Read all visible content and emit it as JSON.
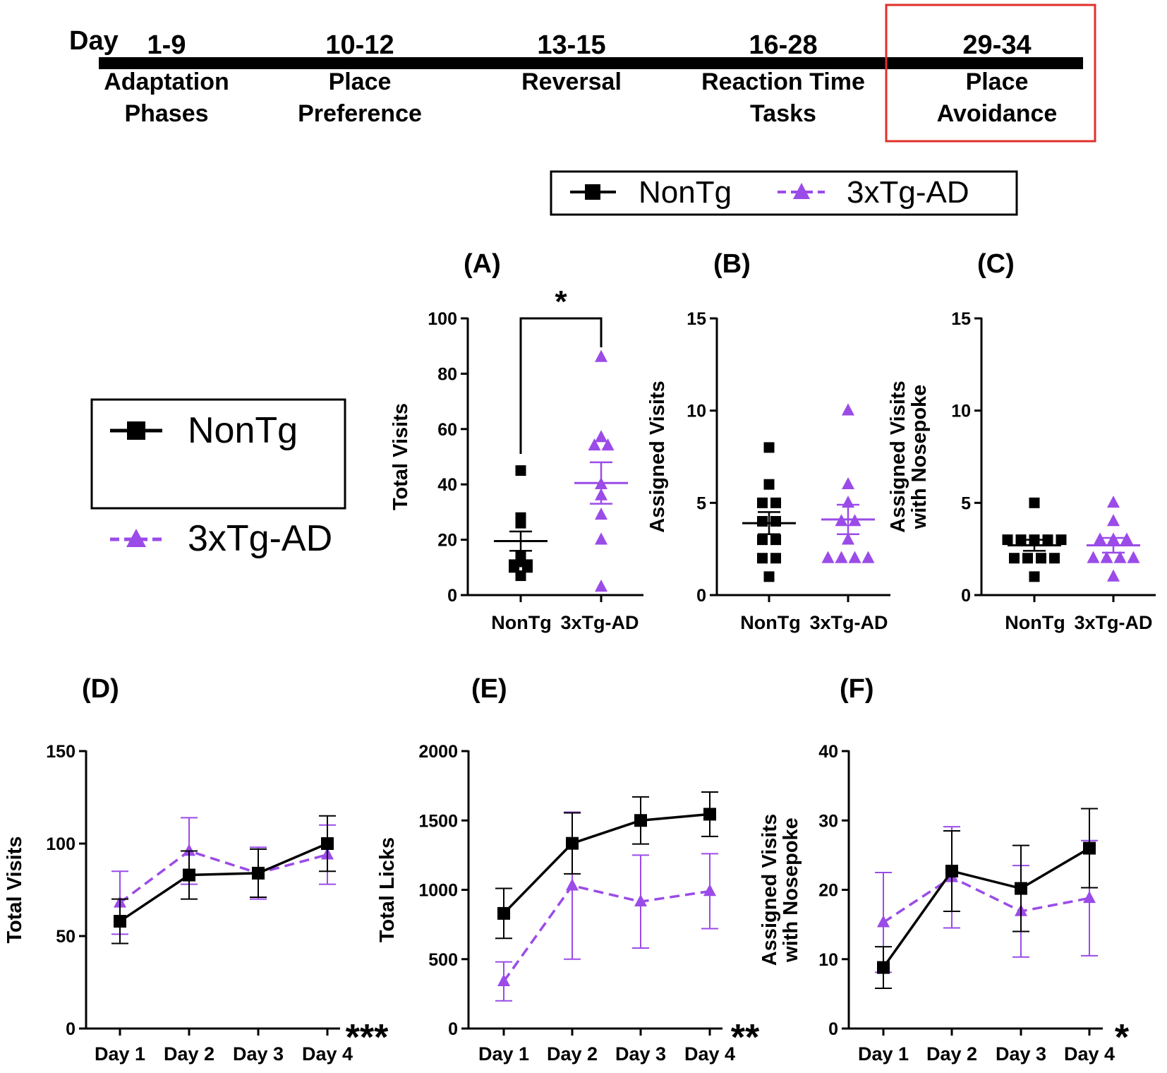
{
  "timeline": {
    "day_label": "Day",
    "phases": [
      {
        "days": "1-9",
        "line1": "Adaptation",
        "line2": "Phases",
        "highlight": false
      },
      {
        "days": "10-12",
        "line1": "Place",
        "line2": "Preference",
        "highlight": false
      },
      {
        "days": "13-15",
        "line1": "Reversal",
        "line2": "",
        "highlight": false
      },
      {
        "days": "16-28",
        "line1": "Reaction Time",
        "line2": "Tasks",
        "highlight": false
      },
      {
        "days": "29-34",
        "line1": "Place",
        "line2": "Avoidance",
        "highlight": true
      }
    ],
    "highlight_color": "#e0302a"
  },
  "legend": {
    "entries": [
      {
        "name": "NonTg",
        "color": "#000000",
        "marker": "square",
        "line": "solid"
      },
      {
        "name": "3xTg-AD",
        "color": "#9b4be8",
        "marker": "triangle",
        "line": "dashed"
      }
    ]
  },
  "chart_data": [
    {
      "panel": "(A)",
      "type": "scatter",
      "ylabel": "Total Visits",
      "ylim": [
        0,
        100
      ],
      "yticks": [
        0,
        20,
        40,
        60,
        80,
        100
      ],
      "categories": [
        "NonTg",
        "3xTg-AD"
      ],
      "groups": [
        {
          "name": "NonTg",
          "points": [
            45,
            28,
            26,
            14,
            12,
            11,
            11,
            10,
            10,
            7
          ],
          "mean": 19.5,
          "sem": 3.5
        },
        {
          "name": "3xTg-AD",
          "points": [
            86,
            57,
            54,
            54,
            40,
            36,
            29,
            20,
            3
          ],
          "mean": 40.5,
          "sem": 7.5
        }
      ],
      "significance": {
        "label": "*",
        "between": [
          "NonTg",
          "3xTg-AD"
        ]
      }
    },
    {
      "panel": "(B)",
      "type": "scatter",
      "ylabel": "Assigned Visits",
      "ylim": [
        0,
        15
      ],
      "yticks": [
        0,
        5,
        10,
        15
      ],
      "categories": [
        "NonTg",
        "3xTg-AD"
      ],
      "groups": [
        {
          "name": "NonTg",
          "points": [
            8,
            6,
            5,
            5,
            4,
            4,
            3,
            3,
            2,
            2,
            1
          ],
          "mean": 3.9,
          "sem": 0.6
        },
        {
          "name": "3xTg-AD",
          "points": [
            10,
            6,
            5,
            4,
            4,
            3,
            2,
            2,
            2,
            2
          ],
          "mean": 4.1,
          "sem": 0.8
        }
      ]
    },
    {
      "panel": "(C)",
      "type": "scatter",
      "ylabel": [
        "Assigned Visits",
        "with Nosepoke"
      ],
      "ylim": [
        0,
        15
      ],
      "yticks": [
        0,
        5,
        10,
        15
      ],
      "categories": [
        "NonTg",
        "3xTg-AD"
      ],
      "groups": [
        {
          "name": "NonTg",
          "points": [
            5,
            3,
            3,
            3,
            3,
            3,
            2,
            2,
            2,
            2,
            1
          ],
          "mean": 2.7,
          "sem": 0.3
        },
        {
          "name": "3xTg-AD",
          "points": [
            5,
            4,
            3,
            3,
            3,
            2,
            2,
            2,
            2,
            1
          ],
          "mean": 2.7,
          "sem": 0.4
        }
      ]
    },
    {
      "panel": "(D)",
      "type": "line",
      "ylabel": "Total Visits",
      "ylim": [
        0,
        150
      ],
      "yticks": [
        0,
        50,
        100,
        150
      ],
      "categories": [
        "Day 1",
        "Day 2",
        "Day 3",
        "Day 4"
      ],
      "series": [
        {
          "name": "NonTg",
          "values": [
            58,
            83,
            84,
            100
          ],
          "errors": [
            12,
            13,
            13,
            15
          ]
        },
        {
          "name": "3xTg-AD",
          "values": [
            68,
            96,
            84,
            94
          ],
          "errors": [
            17,
            18,
            14,
            16
          ]
        }
      ],
      "significance": "***"
    },
    {
      "panel": "(E)",
      "type": "line",
      "ylabel": "Total Licks",
      "ylim": [
        0,
        2000
      ],
      "yticks": [
        0,
        500,
        1000,
        1500,
        2000
      ],
      "categories": [
        "Day 1",
        "Day 2",
        "Day 3",
        "Day 4"
      ],
      "series": [
        {
          "name": "NonTg",
          "values": [
            830,
            1335,
            1500,
            1545
          ],
          "errors": [
            180,
            220,
            170,
            160
          ]
        },
        {
          "name": "3xTg-AD",
          "values": [
            340,
            1030,
            915,
            990
          ],
          "errors": [
            140,
            530,
            335,
            270
          ]
        }
      ],
      "significance": "**"
    },
    {
      "panel": "(F)",
      "type": "line",
      "ylabel": [
        "Assigned Visits",
        "with Nosepoke"
      ],
      "ylim": [
        0,
        40
      ],
      "yticks": [
        0,
        10,
        20,
        30,
        40
      ],
      "categories": [
        "Day 1",
        "Day 2",
        "Day 3",
        "Day 4"
      ],
      "series": [
        {
          "name": "NonTg",
          "values": [
            8.8,
            22.7,
            20.2,
            26
          ],
          "errors": [
            3,
            5.8,
            6.2,
            5.7
          ]
        },
        {
          "name": "3xTg-AD",
          "values": [
            15.3,
            21.8,
            16.9,
            18.8
          ],
          "errors": [
            7.2,
            7.3,
            6.6,
            8.3
          ]
        }
      ],
      "significance": "*"
    }
  ]
}
